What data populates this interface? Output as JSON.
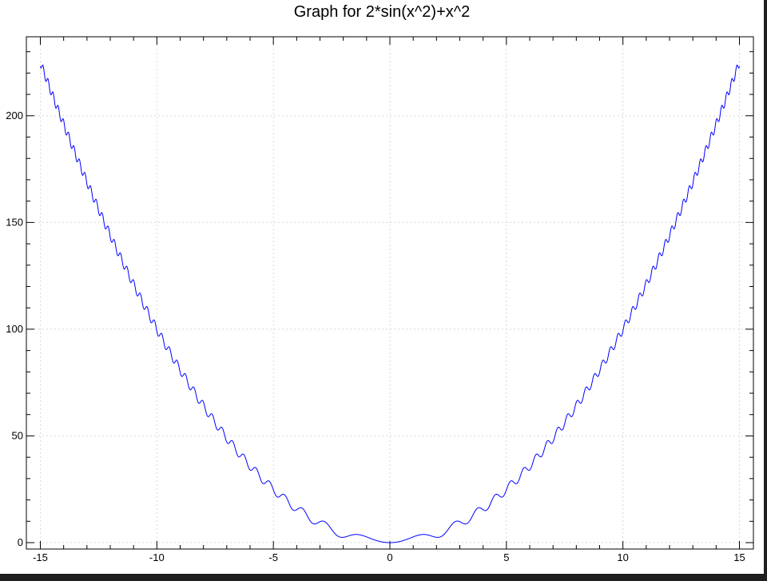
{
  "chart_data": {
    "type": "line",
    "title": "Graph for 2*sin(x^2)+x^2",
    "xlabel": "",
    "ylabel": "",
    "xlim": [
      -15.6,
      15.6
    ],
    "ylim": [
      -3,
      237
    ],
    "grid": true,
    "x_ticks": [
      -15,
      -10,
      -5,
      0,
      5,
      10,
      15
    ],
    "x_tick_labels": [
      "-15",
      "-10",
      "-5",
      "0",
      "5",
      "10",
      "15"
    ],
    "y_ticks": [
      0,
      50,
      100,
      150,
      200
    ],
    "y_tick_labels": [
      "0",
      "50",
      "100",
      "150",
      "200"
    ],
    "function": "2*sin(x^2)+x^2",
    "x_range": [
      -15,
      15
    ],
    "colors": {
      "line": "#0000ff",
      "grid": "#d8d8d8",
      "axes": "#000000",
      "background": "#ffffff",
      "frame": "#1f1f1f"
    }
  }
}
